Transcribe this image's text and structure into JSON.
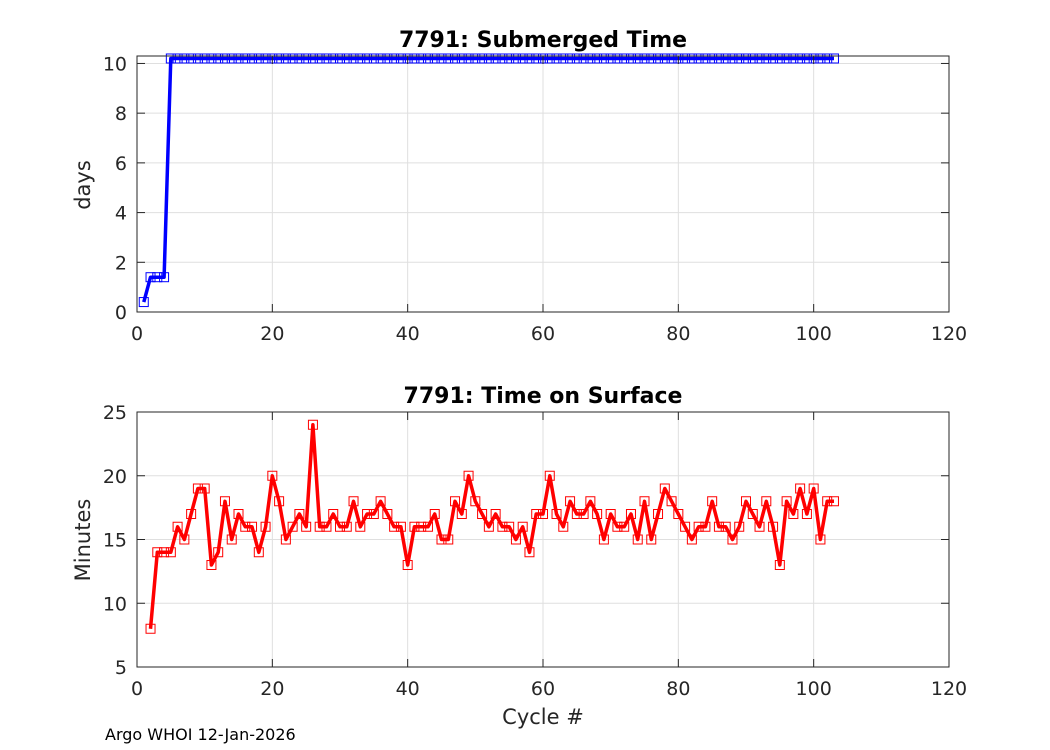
{
  "footer": "Argo WHOI 12-Jan-2026",
  "chart_data": [
    {
      "type": "line",
      "title": "7791: Submerged Time",
      "xlabel": "",
      "ylabel": "days",
      "xlim": [
        0,
        120
      ],
      "ylim": [
        0,
        10.3
      ],
      "xticks": [
        0,
        20,
        40,
        60,
        80,
        100,
        120
      ],
      "yticks": [
        0,
        2,
        4,
        6,
        8,
        10
      ],
      "grid": true,
      "color": "#0000ff",
      "marker": "square",
      "series": [
        {
          "x": [
            1,
            2,
            3,
            4,
            5,
            6,
            7,
            8,
            9,
            10,
            11,
            12,
            13,
            14,
            15,
            16,
            17,
            18,
            19,
            20,
            21,
            22,
            23,
            24,
            25,
            26,
            27,
            28,
            29,
            30,
            31,
            32,
            33,
            34,
            35,
            36,
            37,
            38,
            39,
            40,
            41,
            42,
            43,
            44,
            45,
            46,
            47,
            48,
            49,
            50,
            51,
            52,
            53,
            54,
            55,
            56,
            57,
            58,
            59,
            60,
            61,
            62,
            63,
            64,
            65,
            66,
            67,
            68,
            69,
            70,
            71,
            72,
            73,
            74,
            75,
            76,
            77,
            78,
            79,
            80,
            81,
            82,
            83,
            84,
            85,
            86,
            87,
            88,
            89,
            90,
            91,
            92,
            93,
            94,
            95,
            96,
            97,
            98,
            99,
            100,
            101,
            102,
            103
          ],
          "y": [
            0.4,
            1.4,
            1.4,
            1.4,
            10.2,
            10.2,
            10.2,
            10.2,
            10.2,
            10.2,
            10.2,
            10.2,
            10.2,
            10.2,
            10.2,
            10.2,
            10.2,
            10.2,
            10.2,
            10.2,
            10.2,
            10.2,
            10.2,
            10.2,
            10.2,
            10.2,
            10.2,
            10.2,
            10.2,
            10.2,
            10.2,
            10.2,
            10.2,
            10.2,
            10.2,
            10.2,
            10.2,
            10.2,
            10.2,
            10.2,
            10.2,
            10.2,
            10.2,
            10.2,
            10.2,
            10.2,
            10.2,
            10.2,
            10.2,
            10.2,
            10.2,
            10.2,
            10.2,
            10.2,
            10.2,
            10.2,
            10.2,
            10.2,
            10.2,
            10.2,
            10.2,
            10.2,
            10.2,
            10.2,
            10.2,
            10.2,
            10.2,
            10.2,
            10.2,
            10.2,
            10.2,
            10.2,
            10.2,
            10.2,
            10.2,
            10.2,
            10.2,
            10.2,
            10.2,
            10.2,
            10.2,
            10.2,
            10.2,
            10.2,
            10.2,
            10.2,
            10.2,
            10.2,
            10.2,
            10.2,
            10.2,
            10.2,
            10.2,
            10.2,
            10.2,
            10.2,
            10.2,
            10.2,
            10.2,
            10.2,
            10.2,
            10.2,
            10.2
          ]
        }
      ]
    },
    {
      "type": "line",
      "title": "7791: Time on Surface",
      "xlabel": "Cycle #",
      "ylabel": "Minutes",
      "xlim": [
        0,
        120
      ],
      "ylim": [
        5,
        25
      ],
      "xticks": [
        0,
        20,
        40,
        60,
        80,
        100,
        120
      ],
      "yticks": [
        5,
        10,
        15,
        20,
        25
      ],
      "grid": true,
      "color": "#ff0000",
      "marker": "square",
      "series": [
        {
          "x": [
            2,
            3,
            4,
            5,
            6,
            7,
            8,
            9,
            10,
            11,
            12,
            13,
            14,
            15,
            16,
            17,
            18,
            19,
            20,
            21,
            22,
            23,
            24,
            25,
            26,
            27,
            28,
            29,
            30,
            31,
            32,
            33,
            34,
            35,
            36,
            37,
            38,
            39,
            40,
            41,
            42,
            43,
            44,
            45,
            46,
            47,
            48,
            49,
            50,
            51,
            52,
            53,
            54,
            55,
            56,
            57,
            58,
            59,
            60,
            61,
            62,
            63,
            64,
            65,
            66,
            67,
            68,
            69,
            70,
            71,
            72,
            73,
            74,
            75,
            76,
            77,
            78,
            79,
            80,
            81,
            82,
            83,
            84,
            85,
            86,
            87,
            88,
            89,
            90,
            91,
            92,
            93,
            94,
            95,
            96,
            97,
            98,
            99,
            100,
            101,
            102,
            103
          ],
          "y": [
            8,
            14,
            14,
            14,
            16,
            15,
            17,
            19,
            19,
            13,
            14,
            18,
            15,
            17,
            16,
            16,
            14,
            16,
            20,
            18,
            15,
            16,
            17,
            16,
            24,
            16,
            16,
            17,
            16,
            16,
            18,
            16,
            17,
            17,
            18,
            17,
            16,
            16,
            13,
            16,
            16,
            16,
            17,
            15,
            15,
            18,
            17,
            20,
            18,
            17,
            16,
            17,
            16,
            16,
            15,
            16,
            14,
            17,
            17,
            20,
            17,
            16,
            18,
            17,
            17,
            18,
            17,
            15,
            17,
            16,
            16,
            17,
            15,
            18,
            15,
            17,
            19,
            18,
            17,
            16,
            15,
            16,
            16,
            18,
            16,
            16,
            15,
            16,
            18,
            17,
            16,
            18,
            16,
            13,
            18,
            17,
            19,
            17,
            19,
            15,
            18,
            18
          ]
        }
      ]
    }
  ]
}
